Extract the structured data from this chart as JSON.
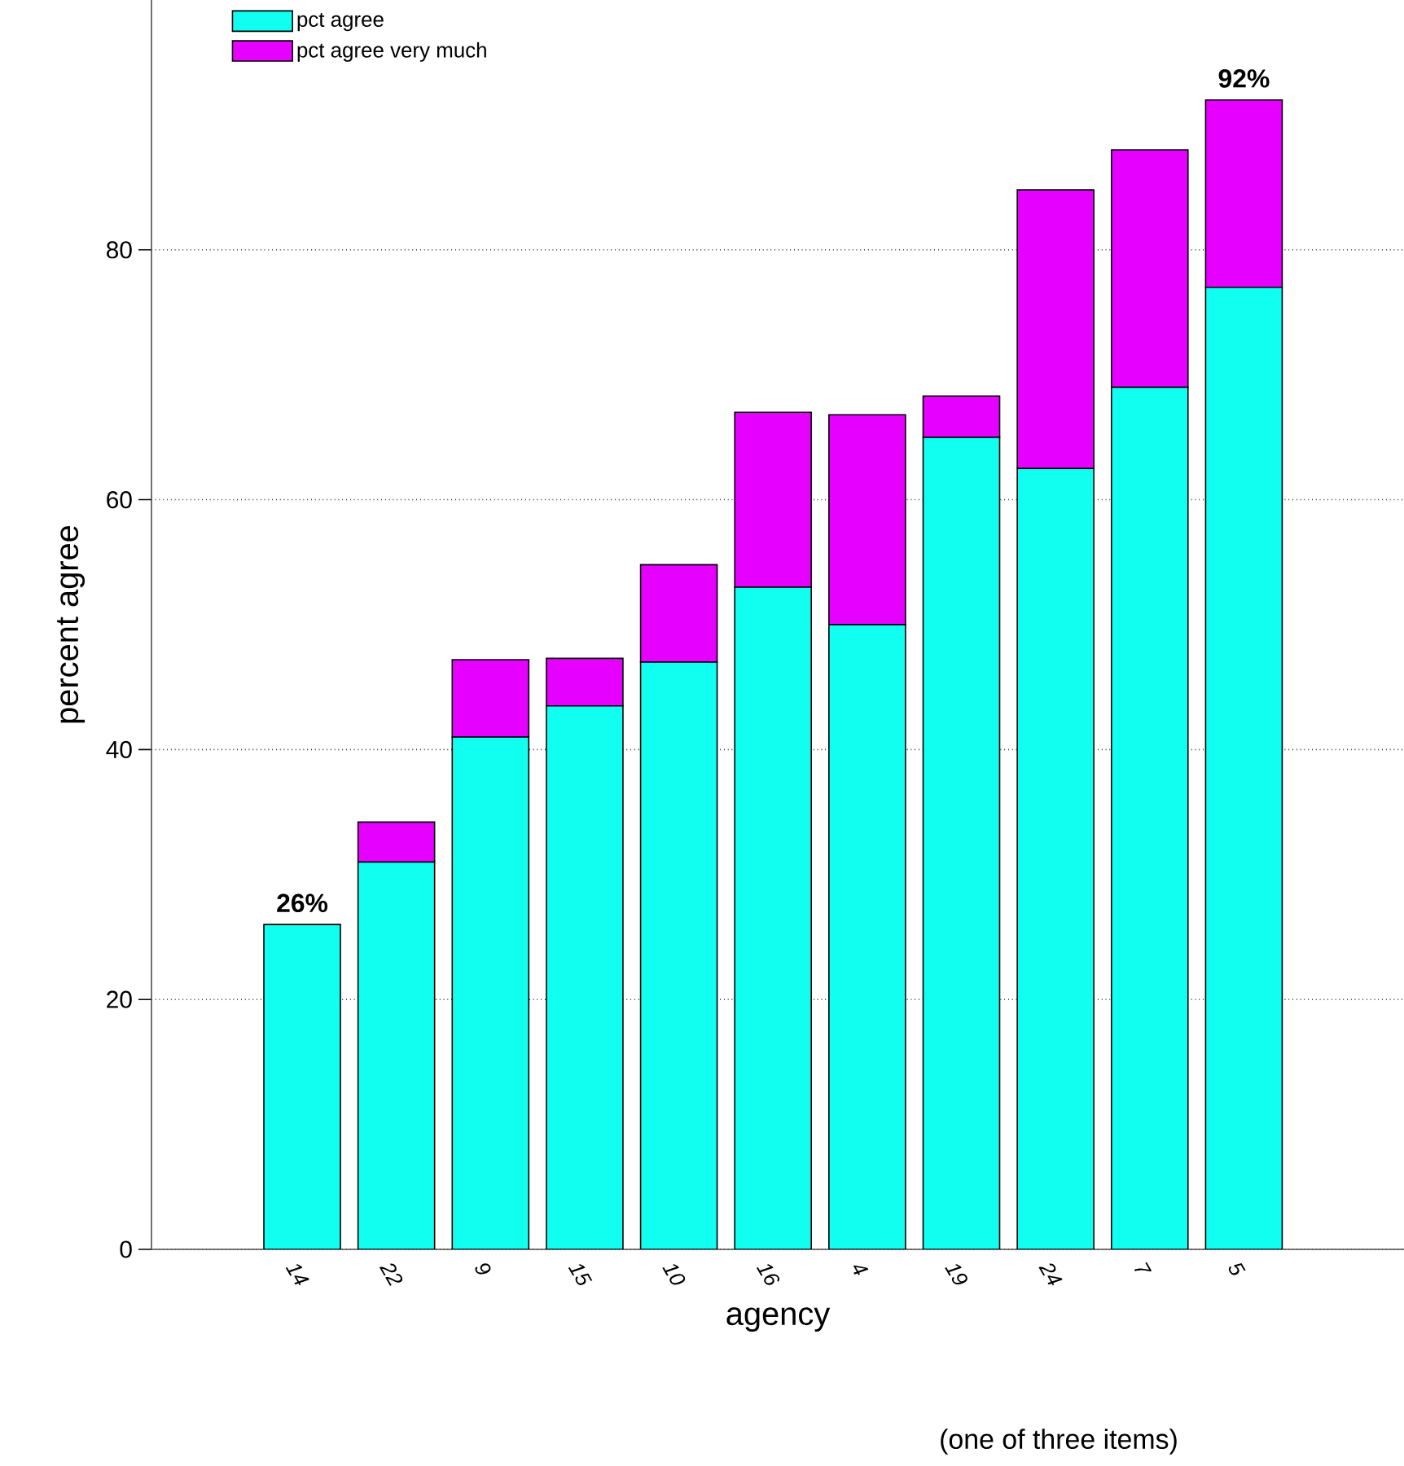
{
  "chart_data": {
    "type": "bar",
    "stacked": true,
    "xlabel": "agency",
    "ylabel": "percent agree",
    "categories": [
      "14",
      "22",
      "9",
      "15",
      "10",
      "16",
      "4",
      "19",
      "24",
      "7",
      "5"
    ],
    "series": [
      {
        "name": "pct agree",
        "color": "#10fff0",
        "values": [
          26,
          31,
          41,
          43.5,
          47,
          53,
          50,
          65,
          62.5,
          69,
          77
        ]
      },
      {
        "name": "pct agree very much",
        "color": "#e600ff",
        "values": [
          0,
          3.2,
          6.2,
          3.8,
          7.8,
          14,
          16.8,
          3.3,
          22.3,
          19,
          15
        ]
      }
    ],
    "ylim": [
      0,
      100
    ],
    "yticks": [
      0,
      20,
      40,
      60,
      80
    ],
    "grid": "y",
    "legend": "top left",
    "annotations": [
      {
        "text": "26%",
        "x": "14",
        "y": 26
      },
      {
        "text": "92%",
        "x": "5",
        "y": 92
      },
      "(one of three items)"
    ]
  }
}
